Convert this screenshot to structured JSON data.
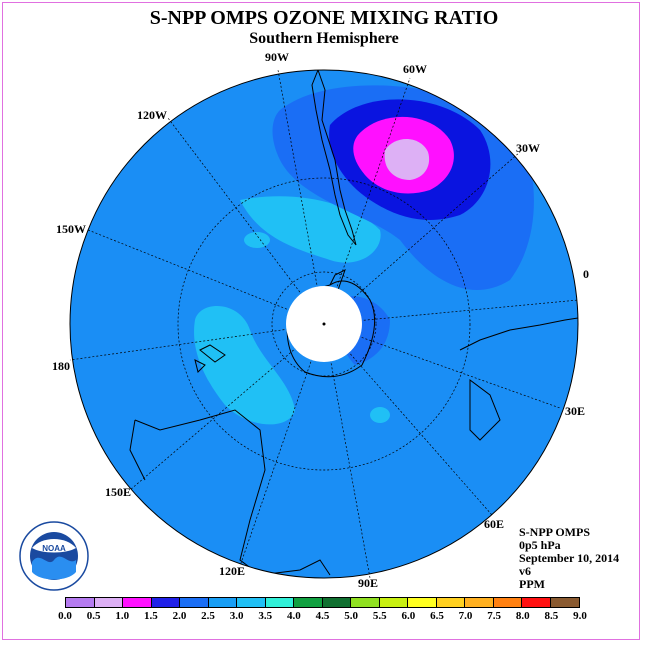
{
  "title": "S-NPP OMPS OZONE MIXING RATIO",
  "subtitle": "Southern Hemisphere",
  "longitude_labels": [
    "90W",
    "60W",
    "30W",
    "0",
    "30E",
    "60E",
    "90E",
    "120E",
    "150E",
    "180",
    "150W",
    "120W"
  ],
  "info": {
    "instrument": "S-NPP OMPS",
    "pressure": "0p5 hPa",
    "date": "September 10, 2014",
    "version": "v6",
    "units": "PPM"
  },
  "colorbar": {
    "ticks": [
      "0.0",
      "0.5",
      "1.0",
      "1.5",
      "2.0",
      "2.5",
      "3.0",
      "3.5",
      "4.0",
      "4.5",
      "5.0",
      "5.5",
      "6.0",
      "6.5",
      "7.0",
      "7.5",
      "8.0",
      "8.5",
      "9.0"
    ],
    "colors": [
      "#b57bf0",
      "#ddb0f5",
      "#ff10ff",
      "#2020e8",
      "#1a6ef5",
      "#189ef5",
      "#20c0f5",
      "#30f0d8",
      "#10a040",
      "#107030",
      "#90e020",
      "#c8f010",
      "#ffff20",
      "#ffd020",
      "#ffb020",
      "#ff8010",
      "#ff1010",
      "#8a5a30"
    ]
  },
  "logo": {
    "text": "NOAA"
  },
  "colors": {
    "background_field": "#1a8ef5",
    "low_1_5": "#1ab0f5",
    "contour_2_0": "#1a6ef5",
    "contour_1_5": "#0a14e0",
    "contour_1_0": "#ff10ff",
    "contour_0_5": "#ddb0f5",
    "pole_mask": "#ffffff"
  }
}
